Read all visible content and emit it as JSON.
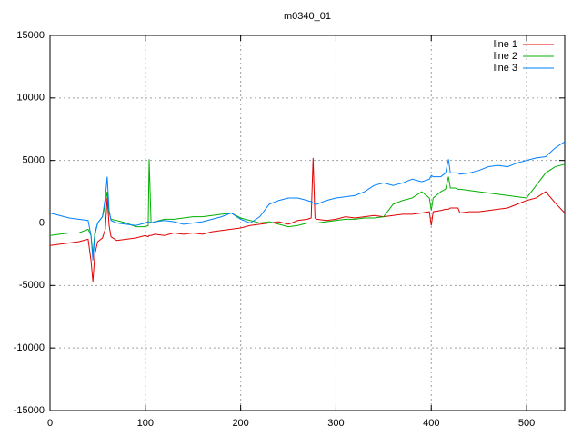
{
  "chart_data": {
    "type": "line",
    "title": "m0340_01",
    "x": [
      0,
      10,
      20,
      30,
      40,
      43,
      45,
      47,
      50,
      55,
      58,
      60,
      62,
      64,
      70,
      80,
      90,
      100,
      103,
      104,
      106,
      110,
      120,
      130,
      140,
      150,
      160,
      170,
      180,
      190,
      200,
      210,
      220,
      230,
      240,
      250,
      260,
      270,
      274,
      276,
      278,
      280,
      290,
      300,
      310,
      320,
      330,
      340,
      350,
      360,
      370,
      380,
      390,
      398,
      400,
      402,
      410,
      415,
      418,
      420,
      425,
      428,
      430,
      440,
      450,
      460,
      470,
      480,
      490,
      500,
      510,
      520,
      530,
      540
    ],
    "series": [
      {
        "name": "line 1",
        "color": "#e00000",
        "values": [
          -1800,
          -1700,
          -1600,
          -1500,
          -1300,
          -3000,
          -4700,
          -2500,
          -1500,
          -1200,
          -500,
          2000,
          -200,
          -1100,
          -1400,
          -1300,
          -1200,
          -1000,
          -1100,
          -1000,
          -1000,
          -900,
          -1000,
          -800,
          -900,
          -800,
          -900,
          -700,
          -600,
          -500,
          -400,
          -200,
          -100,
          0,
          100,
          -100,
          200,
          300,
          400,
          5200,
          400,
          300,
          200,
          300,
          500,
          400,
          500,
          600,
          500,
          600,
          700,
          700,
          800,
          900,
          -200,
          900,
          1000,
          1100,
          1100,
          1200,
          1200,
          1200,
          800,
          900,
          900,
          1000,
          1100,
          1200,
          1500,
          1800,
          2000,
          2500,
          1600,
          800
        ]
      },
      {
        "name": "line 2",
        "color": "#00b000",
        "values": [
          -1000,
          -900,
          -800,
          -800,
          -500,
          -1000,
          -2500,
          -800,
          0,
          500,
          1500,
          2500,
          800,
          300,
          200,
          0,
          -300,
          -300,
          -200,
          5100,
          0,
          100,
          300,
          300,
          400,
          500,
          500,
          600,
          700,
          800,
          400,
          200,
          0,
          100,
          -100,
          -300,
          -200,
          0,
          0,
          0,
          0,
          0,
          100,
          200,
          300,
          300,
          400,
          400,
          500,
          1500,
          1800,
          2000,
          2500,
          2000,
          1000,
          2000,
          2500,
          2700,
          3700,
          2800,
          2800,
          2700,
          2700,
          2600,
          2500,
          2400,
          2300,
          2200,
          2100,
          2000,
          3000,
          4000,
          4500,
          4700
        ]
      },
      {
        "name": "line 3",
        "color": "#0080ff",
        "values": [
          800,
          600,
          400,
          300,
          200,
          -1000,
          -3000,
          -1000,
          0,
          500,
          2000,
          3700,
          1000,
          200,
          0,
          -100,
          -200,
          0,
          100,
          100,
          0,
          100,
          200,
          100,
          -100,
          0,
          100,
          300,
          500,
          800,
          300,
          0,
          500,
          1500,
          1800,
          2000,
          2000,
          1800,
          1700,
          1600,
          1500,
          1500,
          1800,
          2000,
          2100,
          2200,
          2500,
          3000,
          3200,
          3000,
          3200,
          3500,
          3300,
          3500,
          3800,
          3700,
          3700,
          4000,
          5100,
          4000,
          4000,
          4000,
          3900,
          4000,
          4200,
          4500,
          4600,
          4500,
          4800,
          5000,
          5200,
          5300,
          6000,
          6500
        ]
      }
    ],
    "xlim": [
      0,
      540
    ],
    "ylim": [
      -15000,
      15000
    ],
    "xticks": [
      0,
      100,
      200,
      300,
      400,
      500
    ],
    "yticks": [
      -15000,
      -10000,
      -5000,
      0,
      5000,
      10000,
      15000
    ],
    "grid": true,
    "legend": "upper right"
  }
}
